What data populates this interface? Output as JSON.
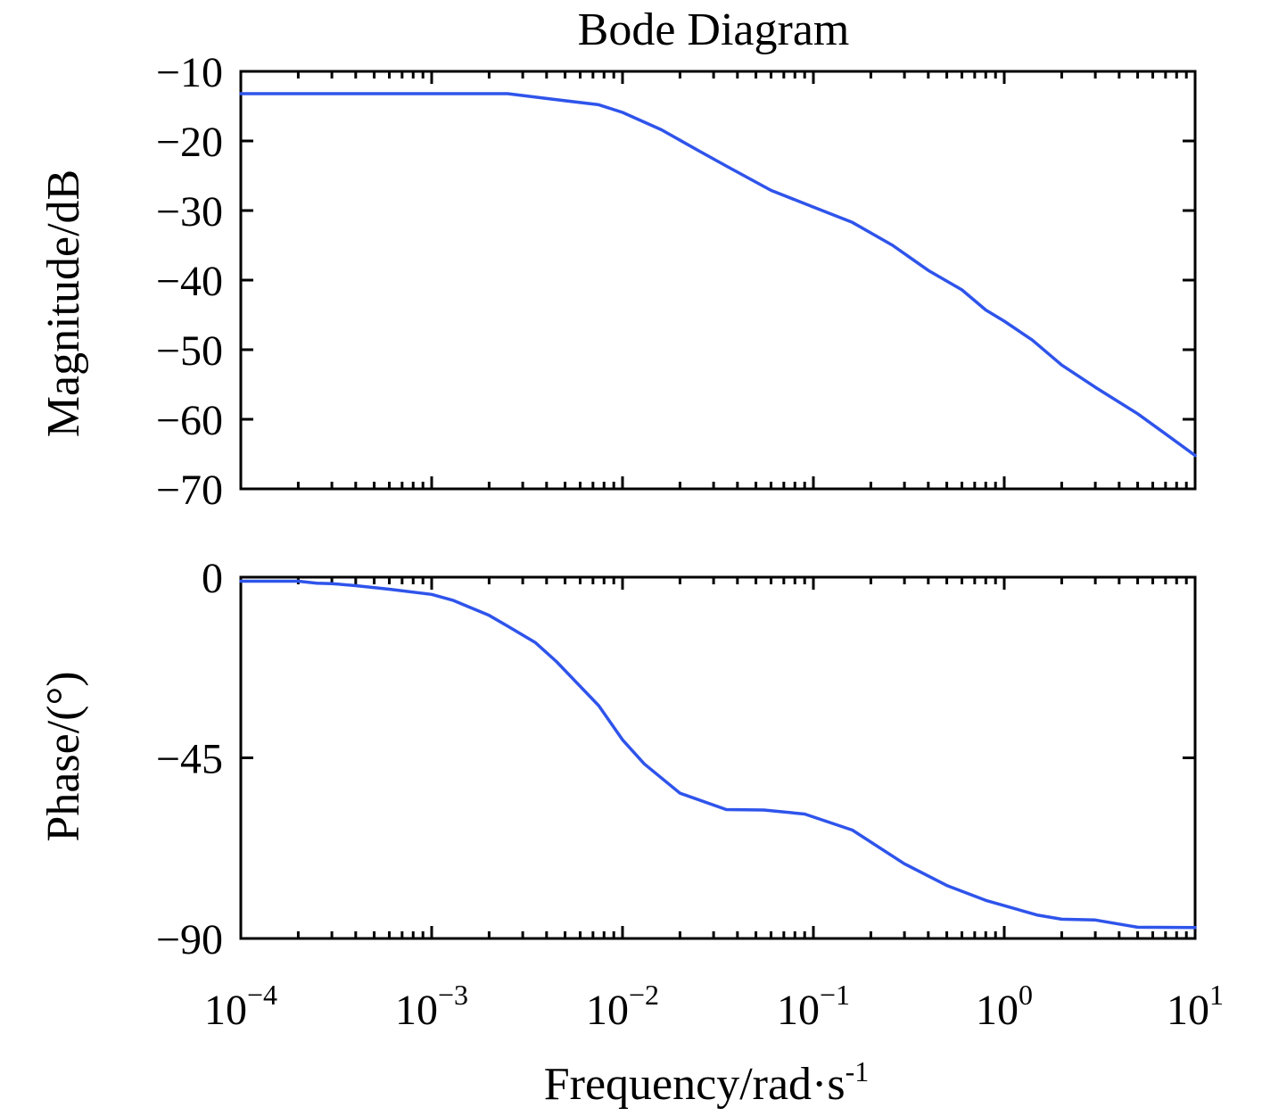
{
  "chart_data": {
    "type": "line",
    "title": "Bode Diagram",
    "xlabel": "Frequency/rad·s",
    "xlabel_sup": "-1",
    "x_scale": "log",
    "xlim": [
      0.0001,
      10
    ],
    "x_ticks": [
      {
        "base": "10",
        "exp": "−4",
        "value": 0.0001
      },
      {
        "base": "10",
        "exp": "−3",
        "value": 0.001
      },
      {
        "base": "10",
        "exp": "−2",
        "value": 0.01
      },
      {
        "base": "10",
        "exp": "−1",
        "value": 0.1
      },
      {
        "base": "10",
        "exp": "0",
        "value": 1
      },
      {
        "base": "10",
        "exp": "1",
        "value": 10
      }
    ],
    "line_color": "#2f54eb",
    "panels": [
      {
        "name": "magnitude",
        "ylabel": "Magnitude/dB",
        "ylim": [
          -70,
          -10
        ],
        "y_ticks": [
          -10,
          -20,
          -30,
          -40,
          -50,
          -60,
          -70
        ],
        "y_tick_labels": [
          "−10",
          "−20",
          "−30",
          "−40",
          "−50",
          "−60",
          "−70"
        ],
        "x": [
          0.0001,
          0.0005,
          0.0025,
          0.004,
          0.0075,
          0.01,
          0.016,
          0.025,
          0.035,
          0.06,
          0.1,
          0.16,
          0.26,
          0.4,
          0.6,
          0.8,
          1.0,
          1.4,
          2.0,
          3.0,
          5.0,
          7.0,
          10.0
        ],
        "values": [
          -13.2,
          -13.2,
          -13.2,
          -13.9,
          -14.8,
          -15.9,
          -18.4,
          -21.4,
          -23.6,
          -27.1,
          -29.5,
          -31.7,
          -35.0,
          -38.6,
          -41.4,
          -44.3,
          -45.9,
          -48.6,
          -52.2,
          -55.4,
          -59.2,
          -62.1,
          -65.2
        ]
      },
      {
        "name": "phase",
        "ylabel": "Phase/(°)",
        "ylim": [
          -90,
          0
        ],
        "y_ticks": [
          0,
          -45,
          -90
        ],
        "y_tick_labels": [
          "0",
          "−45",
          "−90"
        ],
        "x": [
          0.0001,
          0.0002,
          0.00025,
          0.0003,
          0.0004,
          0.0006,
          0.001,
          0.0013,
          0.002,
          0.0025,
          0.0035,
          0.0045,
          0.0075,
          0.01,
          0.013,
          0.02,
          0.035,
          0.055,
          0.09,
          0.16,
          0.3,
          0.5,
          0.8,
          1.5,
          2.0,
          3.0,
          5.0,
          10.0
        ],
        "values": [
          -1.0,
          -1.0,
          -1.5,
          -1.6,
          -2.1,
          -3.0,
          -4.3,
          -5.8,
          -9.5,
          -12.2,
          -16.3,
          -21.0,
          -32.0,
          -40.5,
          -46.5,
          -53.8,
          -57.9,
          -58.0,
          -59.0,
          -63.0,
          -71.4,
          -76.8,
          -80.5,
          -84.2,
          -85.2,
          -85.4,
          -87.2,
          -87.3
        ]
      }
    ]
  }
}
